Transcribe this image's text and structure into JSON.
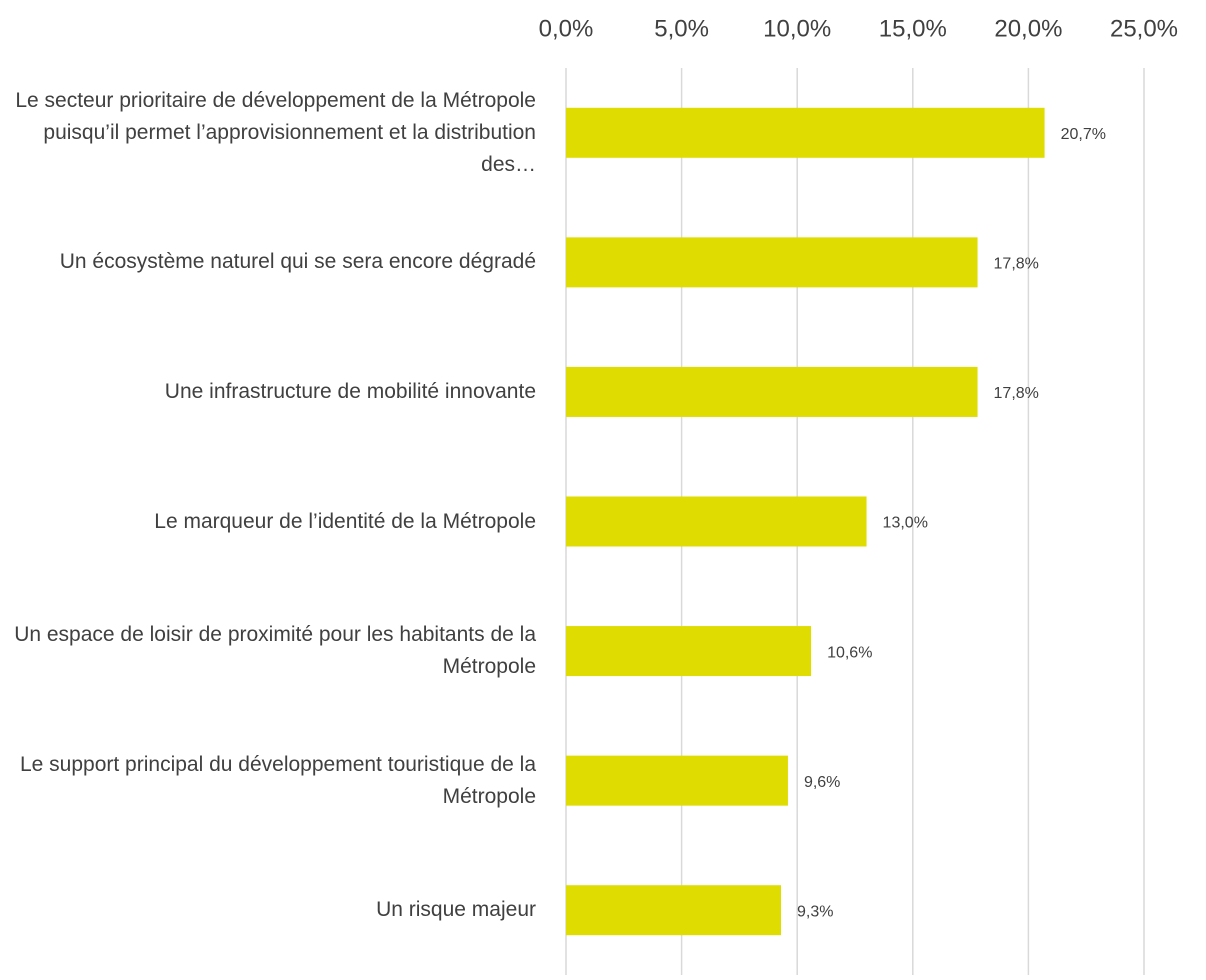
{
  "chart_data": {
    "type": "bar",
    "orientation": "horizontal",
    "categories": [
      "Le secteur prioritaire de développement de la Métropole puisqu’il permet l’approvisionnement et la distribution des…",
      "Un écosystème naturel qui se sera encore dégradé",
      "Une infrastructure de mobilité innovante",
      "Le marqueur de l’identité de la Métropole",
      "Un espace de loisir de proximité pour les habitants de la Métropole",
      "Le support principal du développement touristique de la Métropole",
      "Un risque majeur"
    ],
    "values": [
      20.7,
      17.8,
      17.8,
      13.0,
      10.6,
      9.6,
      9.3
    ],
    "value_labels": [
      "20,7%",
      "17,8%",
      "17,8%",
      "13,0%",
      "10,6%",
      "9,6%",
      "9,3%"
    ],
    "color": "#dedc00",
    "xlim": [
      0,
      25
    ],
    "xticks": [
      {
        "value": 0,
        "label": "0,0%"
      },
      {
        "value": 5,
        "label": "5,0%"
      },
      {
        "value": 10,
        "label": "10,0%"
      },
      {
        "value": 15,
        "label": "15,0%"
      },
      {
        "value": 20,
        "label": "20,0%"
      },
      {
        "value": 25,
        "label": "25,0%"
      }
    ],
    "grid": true
  }
}
